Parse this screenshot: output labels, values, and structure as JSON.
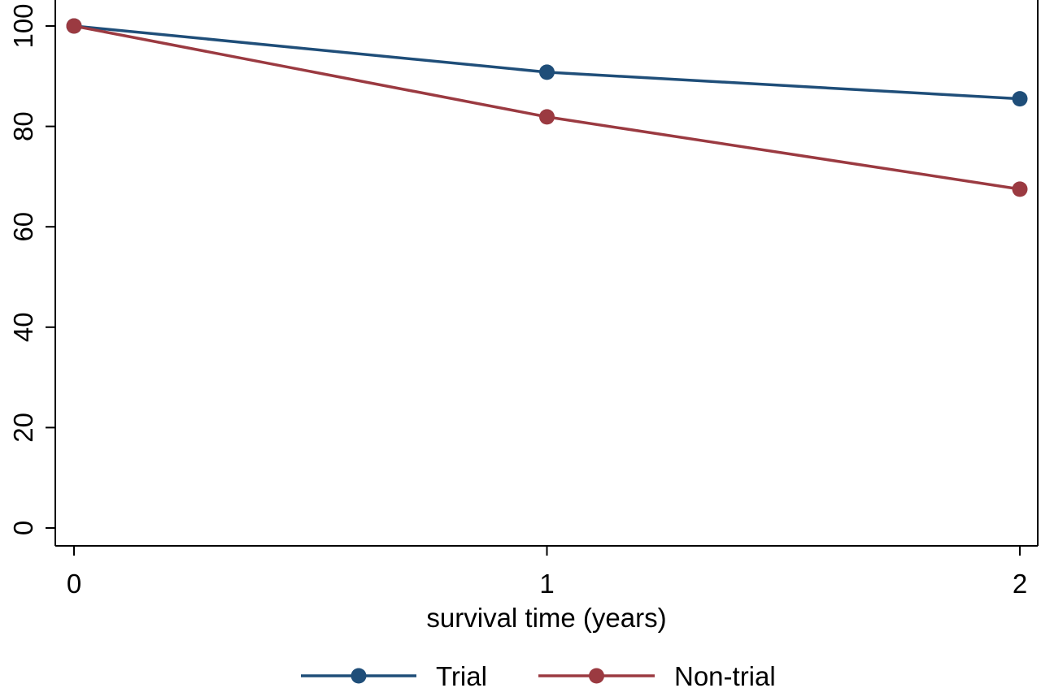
{
  "chart_data": {
    "type": "line",
    "title": "",
    "xlabel": "survival time (years)",
    "ylabel": "",
    "x": [
      0,
      1,
      2
    ],
    "x_ticks": [
      "0",
      "1",
      "2"
    ],
    "xlim": [
      0,
      2
    ],
    "y_ticks": [
      "0",
      "20",
      "40",
      "60",
      "80",
      "100"
    ],
    "y_tick_values": [
      0,
      20,
      40,
      60,
      80,
      100
    ],
    "ylim": [
      0,
      100
    ],
    "grid": false,
    "legend_position": "bottom",
    "series": [
      {
        "name": "Trial",
        "color": "#1f4e79",
        "values": [
          100,
          90.8,
          85.5
        ]
      },
      {
        "name": "Non-trial",
        "color": "#9b3a41",
        "values": [
          100,
          81.9,
          67.5
        ]
      }
    ]
  }
}
